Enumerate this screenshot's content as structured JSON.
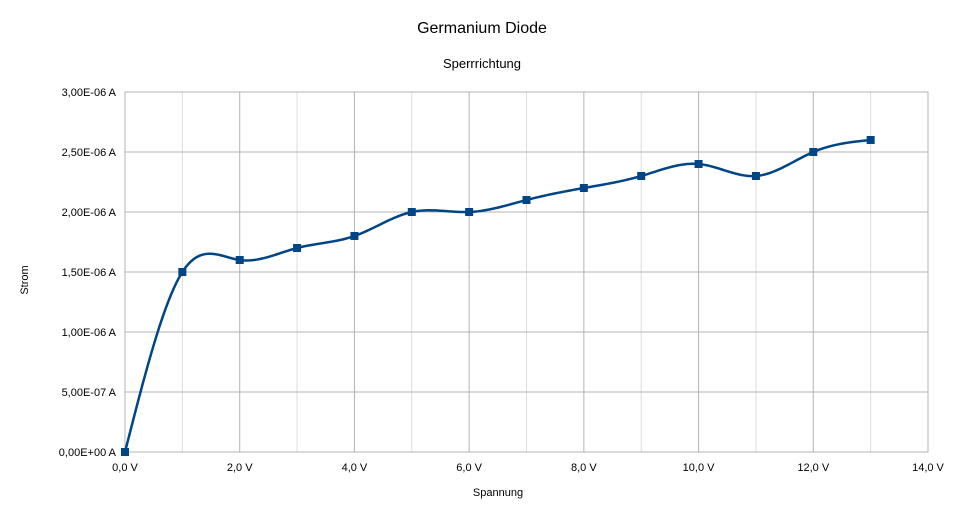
{
  "chart_data": {
    "type": "scatter",
    "title": "Germanium Diode",
    "subtitle": "Sperrrichtung",
    "xlabel": "Spannung",
    "ylabel": "Strom",
    "xlim": [
      0,
      14
    ],
    "ylim": [
      0,
      3e-06
    ],
    "x_ticks": [
      0,
      2,
      4,
      6,
      8,
      10,
      12,
      14
    ],
    "x_tick_labels": [
      "0,0 V",
      "2,0 V",
      "4,0 V",
      "6,0 V",
      "8,0 V",
      "10,0 V",
      "12,0 V",
      "14,0 V"
    ],
    "y_ticks": [
      0,
      5e-07,
      1e-06,
      1.5e-06,
      2e-06,
      2.5e-06,
      3e-06
    ],
    "y_tick_labels": [
      "0,00E+00 A",
      "5,00E-07 A",
      "1,00E-06 A",
      "1,50E-06 A",
      "2,00E-06 A",
      "2,50E-06 A",
      "3,00E-06 A"
    ],
    "x_minor_grid_step": 1,
    "grid": true,
    "smooth": true,
    "marker": "square",
    "color": "#004586",
    "series": [
      {
        "x": [
          0,
          1,
          2,
          3,
          4,
          5,
          6,
          7,
          8,
          9,
          10,
          11,
          12,
          13
        ],
        "y": [
          0,
          1.5e-06,
          1.6e-06,
          1.7e-06,
          1.8e-06,
          2e-06,
          2e-06,
          2.1e-06,
          2.2e-06,
          2.3e-06,
          2.4e-06,
          2.3e-06,
          2.5e-06,
          2.6e-06
        ]
      }
    ]
  }
}
